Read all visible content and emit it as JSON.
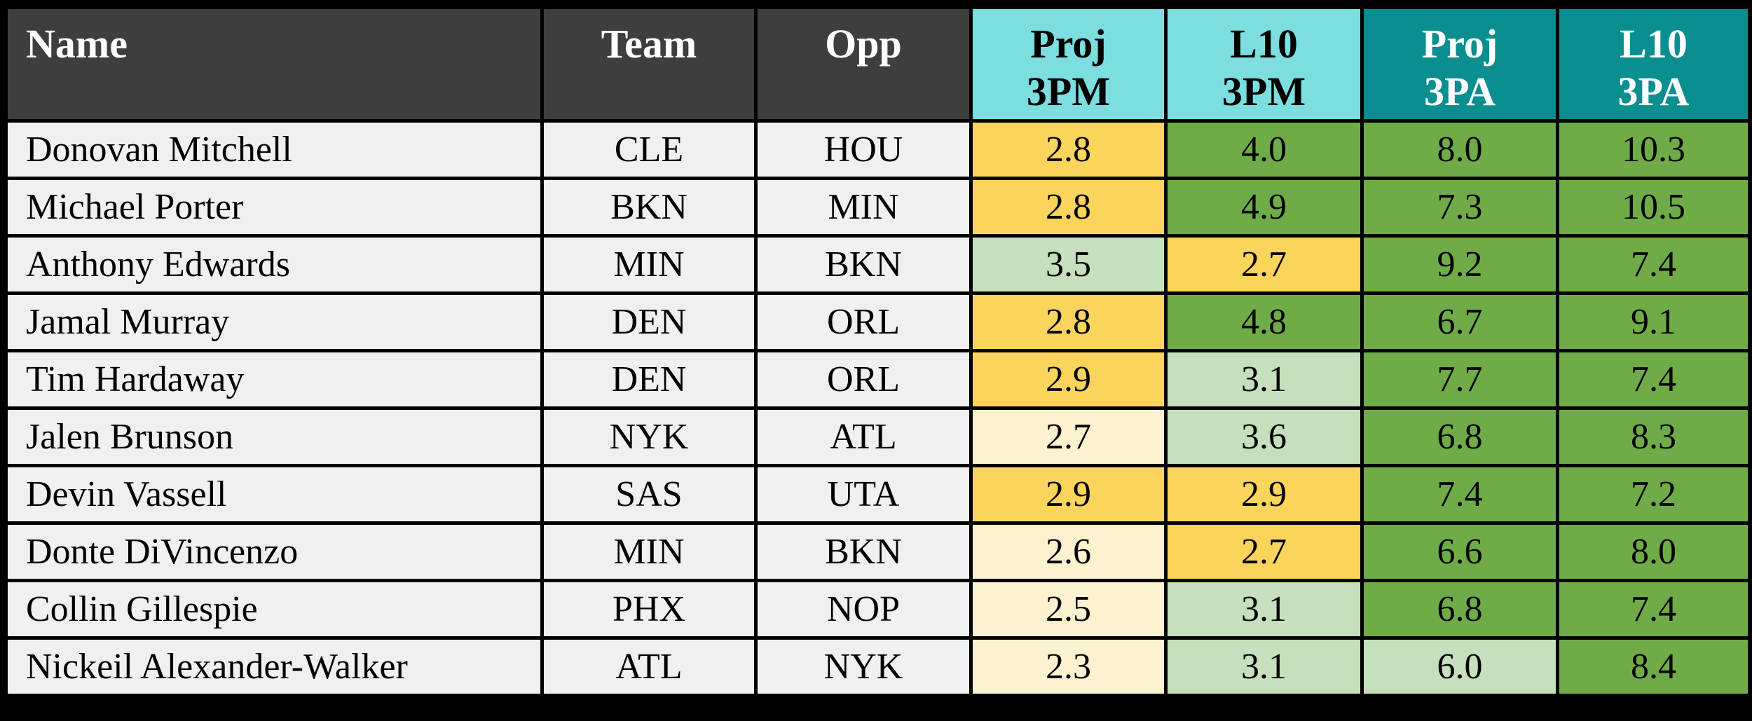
{
  "colors": {
    "page_background": "#000000",
    "grid_border": "#000000",
    "header_dark": "#3E3E3E",
    "header_cyan": "#7CDEDE",
    "header_teal": "#0A8E90",
    "row_plain": "#F0F0F0",
    "yellow": "#FBD45C",
    "cream": "#FCF2D0",
    "green": "#6FAC47",
    "lightgreen": "#C6DFBC",
    "header_dark_text": "#FFFFFF",
    "header_teal_text": "#FFFFFF",
    "cell_text": "#000000"
  },
  "table": {
    "columns": [
      {
        "key": "name",
        "label_lines": [
          "Name"
        ],
        "header_style": "dark",
        "type": "text"
      },
      {
        "key": "team",
        "label_lines": [
          "Team"
        ],
        "header_style": "dark",
        "type": "text"
      },
      {
        "key": "opp",
        "label_lines": [
          "Opp"
        ],
        "header_style": "dark",
        "type": "text"
      },
      {
        "key": "proj_3pm",
        "label_lines": [
          "Proj",
          "3PM"
        ],
        "header_style": "cyan",
        "type": "stat"
      },
      {
        "key": "l10_3pm",
        "label_lines": [
          "L10",
          "3PM"
        ],
        "header_style": "cyan",
        "type": "stat"
      },
      {
        "key": "proj_3pa",
        "label_lines": [
          "Proj",
          "3PA"
        ],
        "header_style": "teal",
        "type": "stat"
      },
      {
        "key": "l10_3pa",
        "label_lines": [
          "L10",
          "3PA"
        ],
        "header_style": "teal",
        "type": "stat"
      }
    ],
    "rows": [
      {
        "name": "Donovan Mitchell",
        "team": "CLE",
        "opp": "HOU",
        "proj_3pm": {
          "value": "2.8",
          "color": "yellow"
        },
        "l10_3pm": {
          "value": "4.0",
          "color": "green"
        },
        "proj_3pa": {
          "value": "8.0",
          "color": "green"
        },
        "l10_3pa": {
          "value": "10.3",
          "color": "green"
        }
      },
      {
        "name": "Michael Porter",
        "team": "BKN",
        "opp": "MIN",
        "proj_3pm": {
          "value": "2.8",
          "color": "yellow"
        },
        "l10_3pm": {
          "value": "4.9",
          "color": "green"
        },
        "proj_3pa": {
          "value": "7.3",
          "color": "green"
        },
        "l10_3pa": {
          "value": "10.5",
          "color": "green"
        }
      },
      {
        "name": "Anthony Edwards",
        "team": "MIN",
        "opp": "BKN",
        "proj_3pm": {
          "value": "3.5",
          "color": "lightgreen"
        },
        "l10_3pm": {
          "value": "2.7",
          "color": "yellow"
        },
        "proj_3pa": {
          "value": "9.2",
          "color": "green"
        },
        "l10_3pa": {
          "value": "7.4",
          "color": "green"
        }
      },
      {
        "name": "Jamal Murray",
        "team": "DEN",
        "opp": "ORL",
        "proj_3pm": {
          "value": "2.8",
          "color": "yellow"
        },
        "l10_3pm": {
          "value": "4.8",
          "color": "green"
        },
        "proj_3pa": {
          "value": "6.7",
          "color": "green"
        },
        "l10_3pa": {
          "value": "9.1",
          "color": "green"
        }
      },
      {
        "name": "Tim Hardaway",
        "team": "DEN",
        "opp": "ORL",
        "proj_3pm": {
          "value": "2.9",
          "color": "yellow"
        },
        "l10_3pm": {
          "value": "3.1",
          "color": "lightgreen"
        },
        "proj_3pa": {
          "value": "7.7",
          "color": "green"
        },
        "l10_3pa": {
          "value": "7.4",
          "color": "green"
        }
      },
      {
        "name": "Jalen Brunson",
        "team": "NYK",
        "opp": "ATL",
        "proj_3pm": {
          "value": "2.7",
          "color": "cream"
        },
        "l10_3pm": {
          "value": "3.6",
          "color": "lightgreen"
        },
        "proj_3pa": {
          "value": "6.8",
          "color": "green"
        },
        "l10_3pa": {
          "value": "8.3",
          "color": "green"
        }
      },
      {
        "name": "Devin Vassell",
        "team": "SAS",
        "opp": "UTA",
        "proj_3pm": {
          "value": "2.9",
          "color": "yellow"
        },
        "l10_3pm": {
          "value": "2.9",
          "color": "yellow"
        },
        "proj_3pa": {
          "value": "7.4",
          "color": "green"
        },
        "l10_3pa": {
          "value": "7.2",
          "color": "green"
        }
      },
      {
        "name": "Donte DiVincenzo",
        "team": "MIN",
        "opp": "BKN",
        "proj_3pm": {
          "value": "2.6",
          "color": "cream"
        },
        "l10_3pm": {
          "value": "2.7",
          "color": "yellow"
        },
        "proj_3pa": {
          "value": "6.6",
          "color": "green"
        },
        "l10_3pa": {
          "value": "8.0",
          "color": "green"
        }
      },
      {
        "name": "Collin Gillespie",
        "team": "PHX",
        "opp": "NOP",
        "proj_3pm": {
          "value": "2.5",
          "color": "cream"
        },
        "l10_3pm": {
          "value": "3.1",
          "color": "lightgreen"
        },
        "proj_3pa": {
          "value": "6.8",
          "color": "green"
        },
        "l10_3pa": {
          "value": "7.4",
          "color": "green"
        }
      },
      {
        "name": "Nickeil Alexander-Walker",
        "team": "ATL",
        "opp": "NYK",
        "proj_3pm": {
          "value": "2.3",
          "color": "cream"
        },
        "l10_3pm": {
          "value": "3.1",
          "color": "lightgreen"
        },
        "proj_3pa": {
          "value": "6.0",
          "color": "lightgreen"
        },
        "l10_3pa": {
          "value": "8.4",
          "color": "green"
        }
      }
    ]
  },
  "chart_data": {
    "type": "table",
    "title": "",
    "columns": [
      "Name",
      "Team",
      "Opp",
      "Proj 3PM",
      "L10 3PM",
      "Proj 3PA",
      "L10 3PA"
    ],
    "rows": [
      [
        "Donovan Mitchell",
        "CLE",
        "HOU",
        2.8,
        4.0,
        8.0,
        10.3
      ],
      [
        "Michael Porter",
        "BKN",
        "MIN",
        2.8,
        4.9,
        7.3,
        10.5
      ],
      [
        "Anthony Edwards",
        "MIN",
        "BKN",
        3.5,
        2.7,
        9.2,
        7.4
      ],
      [
        "Jamal Murray",
        "DEN",
        "ORL",
        2.8,
        4.8,
        6.7,
        9.1
      ],
      [
        "Tim Hardaway",
        "DEN",
        "ORL",
        2.9,
        3.1,
        7.7,
        7.4
      ],
      [
        "Jalen Brunson",
        "NYK",
        "ATL",
        2.7,
        3.6,
        6.8,
        8.3
      ],
      [
        "Devin Vassell",
        "SAS",
        "UTA",
        2.9,
        2.9,
        7.4,
        7.2
      ],
      [
        "Donte DiVincenzo",
        "MIN",
        "BKN",
        2.6,
        2.7,
        6.6,
        8.0
      ],
      [
        "Collin Gillespie",
        "PHX",
        "NOP",
        2.5,
        3.1,
        6.8,
        7.4
      ],
      [
        "Nickeil Alexander-Walker",
        "ATL",
        "NYK",
        2.3,
        3.1,
        6.0,
        8.4
      ]
    ]
  }
}
